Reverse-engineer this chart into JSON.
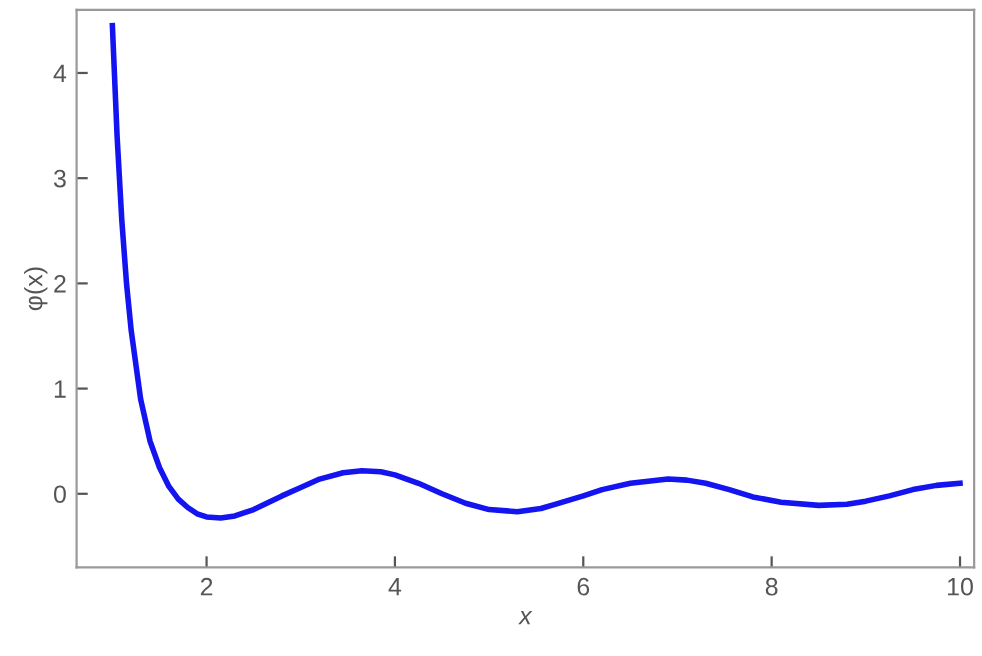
{
  "chart_data": {
    "type": "line",
    "xlabel": "x",
    "ylabel": "φ(x)",
    "x": [
      1.0,
      1.05,
      1.1,
      1.15,
      1.2,
      1.3,
      1.4,
      1.5,
      1.6,
      1.7,
      1.8,
      1.9,
      2.0,
      2.15,
      2.3,
      2.5,
      2.8,
      3.0,
      3.2,
      3.45,
      3.65,
      3.85,
      4.0,
      4.25,
      4.5,
      4.75,
      5.0,
      5.3,
      5.55,
      5.7,
      6.0,
      6.2,
      6.5,
      6.9,
      7.1,
      7.3,
      7.55,
      7.8,
      8.1,
      8.5,
      8.8,
      9.0,
      9.25,
      9.5,
      9.75,
      10.0
    ],
    "series": [
      {
        "color": "#1414f0",
        "values": [
          4.45,
          3.4,
          2.6,
          2.0,
          1.55,
          0.9,
          0.5,
          0.25,
          0.07,
          -0.05,
          -0.13,
          -0.19,
          -0.22,
          -0.23,
          -0.21,
          -0.15,
          -0.02,
          0.06,
          0.14,
          0.2,
          0.22,
          0.21,
          0.18,
          0.1,
          0.0,
          -0.09,
          -0.15,
          -0.17,
          -0.14,
          -0.1,
          -0.02,
          0.04,
          0.1,
          0.14,
          0.13,
          0.1,
          0.04,
          -0.03,
          -0.08,
          -0.11,
          -0.1,
          -0.07,
          -0.02,
          0.04,
          0.08,
          0.1
        ]
      }
    ],
    "xlim": [
      0.62,
      10.15
    ],
    "ylim": [
      -0.7,
      4.6
    ],
    "xticks": [
      2,
      4,
      6,
      8,
      10
    ],
    "yticks": [
      0,
      1,
      2,
      3,
      4
    ],
    "grid": false,
    "marker": "none",
    "line_style": "solid"
  }
}
